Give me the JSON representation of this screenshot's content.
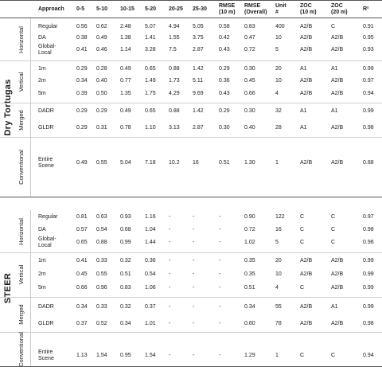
{
  "headers": [
    {
      "key": "approach",
      "label": "Approach"
    },
    {
      "key": "c1",
      "label": "0-5"
    },
    {
      "key": "c2",
      "label": "5-10"
    },
    {
      "key": "c3",
      "label": "10-15"
    },
    {
      "key": "c4",
      "label": "5-20"
    },
    {
      "key": "c5",
      "label": "20-25"
    },
    {
      "key": "c6",
      "label": "25-30"
    },
    {
      "key": "rmse10",
      "label": [
        "RMSE",
        "(10 m)"
      ]
    },
    {
      "key": "rmseall",
      "label": [
        "RMSE",
        "(Overall)"
      ]
    },
    {
      "key": "unit",
      "label": [
        "Unit",
        "#"
      ]
    },
    {
      "key": "zoc10",
      "label": [
        "ZOC",
        "(10 m)"
      ]
    },
    {
      "key": "zoc20",
      "label": [
        "ZOC",
        "(20 m)"
      ]
    },
    {
      "key": "r2",
      "label": "R²"
    }
  ],
  "sites": [
    {
      "name": "Dry Tortugas",
      "groups": [
        {
          "label": "Horizontal",
          "rows": [
            {
              "approach": [
                "Regular"
              ],
              "values": [
                "0.56",
                "0.62",
                "2.48",
                "5.07",
                "4.94",
                "5.05",
                "0.58",
                "0.83",
                "400",
                "A2/B",
                "C",
                "0.91"
              ]
            },
            {
              "approach": [
                "DA"
              ],
              "values": [
                "0.38",
                "0.49",
                "1.38",
                "1.41",
                "1.55",
                "3.75",
                "0.42",
                "0.47",
                "10",
                "A2/B",
                "A2/B",
                "0.95"
              ]
            },
            {
              "approach": [
                "Global-",
                "Local"
              ],
              "values": [
                "0.41",
                "0.46",
                "1.14",
                "3.28",
                "7.5",
                "2.87",
                "0.43",
                "0.72",
                "5",
                "A2/B",
                "A2/B",
                "0.93"
              ]
            }
          ]
        },
        {
          "label": "Vertical",
          "rows": [
            {
              "approach": [
                "1m"
              ],
              "values": [
                "0.29",
                "0.28",
                "0.49",
                "0.65",
                "0.88",
                "1.42",
                "0.29",
                "0.30",
                "20",
                "A1",
                "A1",
                "0.99"
              ]
            },
            {
              "approach": [
                "2m"
              ],
              "values": [
                "0.34",
                "0.40",
                "0.77",
                "1.49",
                "1.73",
                "5.11",
                "0.36",
                "0.45",
                "10",
                "A2/B",
                "A2/B",
                "0.97"
              ]
            },
            {
              "approach": [
                "5m"
              ],
              "values": [
                "0.39",
                "0.50",
                "1.35",
                "1.75",
                "4.29",
                "9.69",
                "0.43",
                "0.66",
                "4",
                "A2/B",
                "A2/B",
                "0.94"
              ]
            }
          ]
        },
        {
          "label": "Merged",
          "rows": [
            {
              "approach": [
                "DADR"
              ],
              "values": [
                "0.29",
                "0.29",
                "0.49",
                "0.65",
                "0.88",
                "1.42",
                "0.29",
                "0.30",
                "32",
                "A1",
                "A1",
                "0.99"
              ]
            },
            {
              "approach": [
                "GLDR"
              ],
              "values": [
                "0.29",
                "0.31",
                "0.78",
                "1.10",
                "3.13",
                "2.87",
                "0.30",
                "0.40",
                "28",
                "A1",
                "A2/B",
                "0.98"
              ]
            }
          ]
        },
        {
          "label": "Conventional",
          "rows": [
            {
              "approach": [
                "Entire",
                "Scene"
              ],
              "values": [
                "0.49",
                "0.55",
                "5.04",
                "7.18",
                "10.2",
                "16",
                "0.51",
                "1.30",
                "1",
                "A2/B",
                "A2/B",
                "0.88"
              ]
            }
          ]
        }
      ]
    },
    {
      "name": "STEER",
      "groups": [
        {
          "label": "Horizontal",
          "rows": [
            {
              "approach": [
                "Regular"
              ],
              "values": [
                "0.81",
                "0.63",
                "0.93",
                "1.16",
                "-",
                "-",
                "-",
                "0.90",
                "122",
                "C",
                "C",
                "0.97"
              ]
            },
            {
              "approach": [
                "DA"
              ],
              "values": [
                "0.57",
                "0.54",
                "0.68",
                "1.04",
                "-",
                "-",
                "-",
                "0.72",
                "16",
                "C",
                "C",
                "0.98"
              ]
            },
            {
              "approach": [
                "Global-",
                "Local"
              ],
              "values": [
                "0.65",
                "0.88",
                "0.99",
                "1.44",
                "-",
                "-",
                "-",
                "1.02",
                "5",
                "C",
                "C",
                "0.96"
              ]
            }
          ]
        },
        {
          "label": "Vertical",
          "rows": [
            {
              "approach": [
                "1m"
              ],
              "values": [
                "0.41",
                "0.33",
                "0.32",
                "0.36",
                "-",
                "-",
                "-",
                "0.35",
                "20",
                "A2/B",
                "A2/B",
                "0.99"
              ]
            },
            {
              "approach": [
                "2m"
              ],
              "values": [
                "0.45",
                "0.55",
                "0.51",
                "0.54",
                "-",
                "-",
                "-",
                "0.35",
                "10",
                "A2/B",
                "A2/B",
                "0.99"
              ]
            },
            {
              "approach": [
                "5m"
              ],
              "values": [
                "0.66",
                "0.96",
                "0.83",
                "1.06",
                "-",
                "-",
                "-",
                "0.51",
                "4",
                "C",
                "A2/B",
                "0.99"
              ]
            }
          ]
        },
        {
          "label": "Merged",
          "rows": [
            {
              "approach": [
                "DADR"
              ],
              "values": [
                "0.34",
                "0.33",
                "0.32",
                "0.37",
                "-",
                "-",
                "-",
                "0.34",
                "55",
                "A2/B",
                "A1",
                "0.99"
              ]
            },
            {
              "approach": [
                "GLDR"
              ],
              "values": [
                "0.37",
                "0.52",
                "0.34",
                "1.01",
                "-",
                "-",
                "-",
                "0.60",
                "78",
                "A2/B",
                "A2/B",
                "0.98"
              ]
            }
          ]
        },
        {
          "label": "Conventional",
          "rows": [
            {
              "approach": [
                "Entire",
                "Scene"
              ],
              "values": [
                "1.13",
                "1.54",
                "0.95",
                "1.54",
                "-",
                "-",
                "-",
                "1.29",
                "1",
                "C",
                "C",
                "0.94"
              ]
            }
          ]
        }
      ]
    }
  ]
}
